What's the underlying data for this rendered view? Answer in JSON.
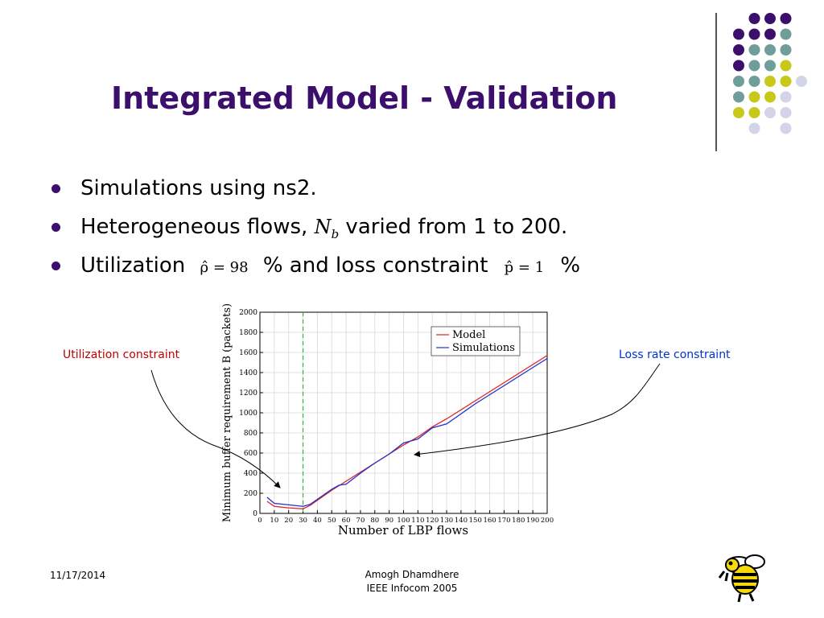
{
  "slide": {
    "title": "Integrated Model - Validation",
    "bullets": [
      {
        "text": "Simulations using ns2."
      },
      {
        "pre": "Heterogeneous flows, ",
        "math_n": "N",
        "math_sub": "b",
        "post": " varied from 1 to 200."
      },
      {
        "pre": "Utilization ",
        "math1": "ρ̂ = 98",
        "mid": " % and loss constraint ",
        "math2": "p̂ = 1",
        "post": " %"
      }
    ],
    "annotation_left": "Utilization constraint",
    "annotation_right": "Loss rate constraint",
    "date": "11/17/2014",
    "footer_line1": "Amogh Dhamdhere",
    "footer_line2": "IEEE Infocom 2005",
    "colors": {
      "title": "#3b0f6b",
      "accent_purple": "#3b0f6b",
      "accent_teal": "#6f9d9a",
      "accent_yellow": "#c8c81a",
      "accent_lilac": "#d4d4e8"
    },
    "logo_icon": "yellow-jacket-bee-icon"
  },
  "chart_data": {
    "type": "line",
    "xlabel": "Number of LBP flows",
    "ylabel": "Minimum buffer requirement B (packets)",
    "xlim": [
      0,
      200
    ],
    "ylim": [
      0,
      2000
    ],
    "xticks": [
      0,
      10,
      20,
      30,
      40,
      50,
      60,
      70,
      80,
      90,
      100,
      110,
      120,
      130,
      140,
      150,
      160,
      170,
      180,
      190,
      200
    ],
    "yticks": [
      0,
      200,
      400,
      600,
      800,
      1000,
      1200,
      1400,
      1600,
      1800,
      2000
    ],
    "legend_position": "top-right",
    "vline_x": 30,
    "series": [
      {
        "name": "Model",
        "color": "#e02020",
        "x": [
          5,
          10,
          20,
          30,
          35,
          40,
          50,
          60,
          70,
          80,
          90,
          100,
          110,
          120,
          130,
          140,
          150,
          160,
          170,
          180,
          190,
          200
        ],
        "y": [
          120,
          70,
          55,
          45,
          80,
          130,
          230,
          320,
          410,
          500,
          590,
          680,
          760,
          860,
          940,
          1030,
          1120,
          1210,
          1300,
          1390,
          1480,
          1570
        ]
      },
      {
        "name": "Simulations",
        "color": "#2030d0",
        "x": [
          5,
          10,
          20,
          30,
          35,
          40,
          50,
          55,
          60,
          70,
          80,
          90,
          100,
          110,
          120,
          130,
          140,
          150,
          160,
          170,
          180,
          190,
          200
        ],
        "y": [
          160,
          100,
          85,
          70,
          90,
          140,
          240,
          280,
          290,
          400,
          500,
          590,
          700,
          740,
          850,
          890,
          990,
          1090,
          1180,
          1270,
          1360,
          1450,
          1540
        ]
      }
    ]
  }
}
